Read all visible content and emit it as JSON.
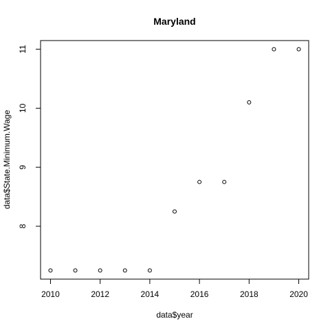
{
  "chart_data": {
    "type": "scatter",
    "title": "Maryland",
    "xlabel": "data$year",
    "ylabel": "data$State.Minimum.Wage",
    "x": [
      2010,
      2011,
      2012,
      2013,
      2014,
      2015,
      2016,
      2017,
      2018,
      2019,
      2020
    ],
    "y": [
      7.25,
      7.25,
      7.25,
      7.25,
      7.25,
      8.25,
      8.75,
      8.75,
      10.1,
      11.0,
      11.0
    ],
    "xticks": [
      2010,
      2012,
      2014,
      2016,
      2018,
      2020
    ],
    "yticks": [
      8,
      9,
      10,
      11
    ],
    "xlim": [
      2009.6,
      2020.4
    ],
    "ylim": [
      7.1035,
      11.1465
    ],
    "grid": false,
    "marker": "open-circle",
    "colors": {
      "points": "#000000",
      "axes": "#000000",
      "background": "#ffffff"
    }
  }
}
